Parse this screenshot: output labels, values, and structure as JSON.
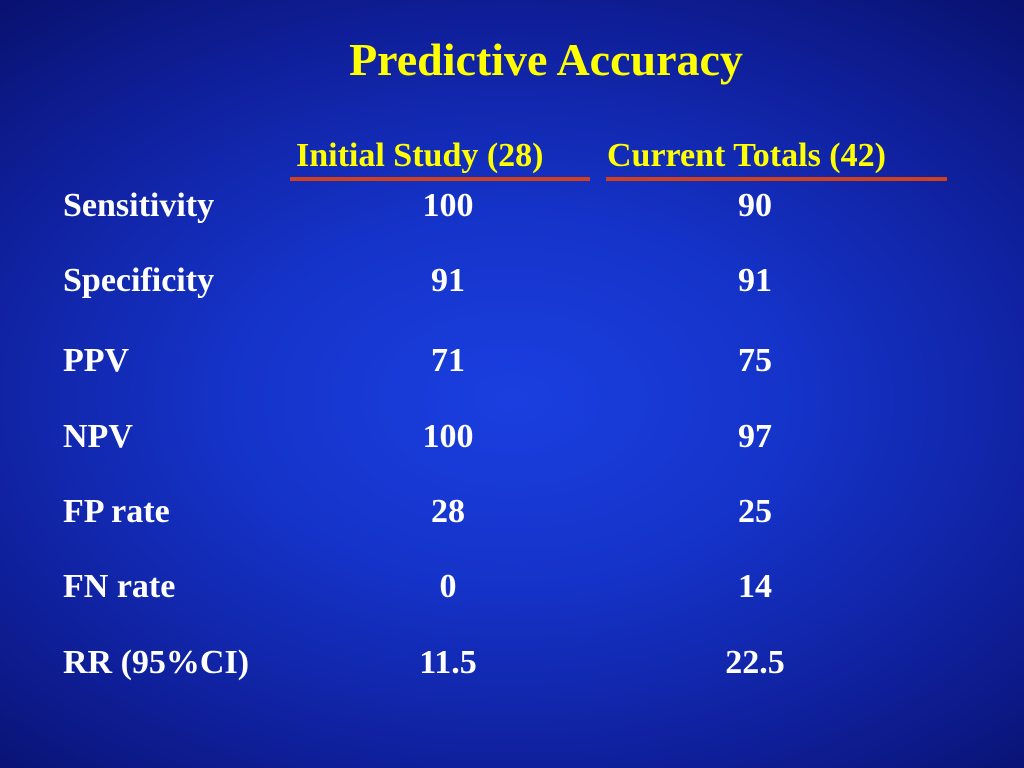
{
  "slide": {
    "title": "Predictive Accuracy",
    "columns": [
      "Initial Study (28)",
      "Current Totals (42)"
    ],
    "rows": [
      {
        "label": "Sensitivity",
        "initial": "100",
        "current": "90"
      },
      {
        "label": "Specificity",
        "initial": "91",
        "current": "91"
      },
      {
        "label": "PPV",
        "initial": "71",
        "current": "75"
      },
      {
        "label": "NPV",
        "initial": "100",
        "current": "97"
      },
      {
        "label": "FP rate",
        "initial": "28",
        "current": "25"
      },
      {
        "label": "FN rate",
        "initial": "0",
        "current": "14"
      },
      {
        "label": "RR (95%CI)",
        "initial": "11.5",
        "current": "22.5"
      }
    ]
  },
  "colors": {
    "title": "#ffff00",
    "header": "#ffff00",
    "header_underline": "#d0401c",
    "body_text": "#ffffff",
    "background": "#1533c8"
  }
}
